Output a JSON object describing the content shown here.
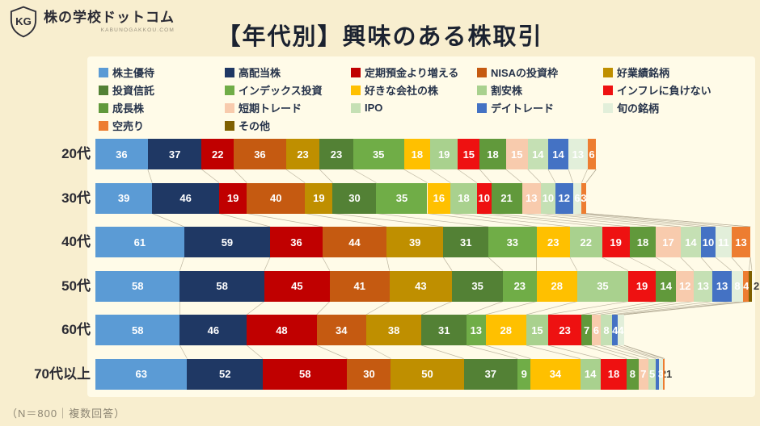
{
  "header": {
    "logo_initials": "KG",
    "logo_text": "株の学校ドットコム",
    "logo_subtext": "KABUNOGAKKOU.COM",
    "title": "【年代別】興味のある株取引"
  },
  "footer": {
    "note": "（N＝800｜複数回答）"
  },
  "chart_data": {
    "type": "bar",
    "orientation": "horizontal",
    "stacked": true,
    "title": "【年代別】興味のある株取引",
    "note": "（N＝800｜複数回答）",
    "legend_position": "top",
    "value_axis_visible": false,
    "categories": [
      "20代",
      "30代",
      "40代",
      "50代",
      "60代",
      "70代以上"
    ],
    "series": [
      {
        "name": "株主優待",
        "color": "#5b9bd5",
        "values": [
          36,
          39,
          61,
          58,
          58,
          63
        ]
      },
      {
        "name": "高配当株",
        "color": "#1f3864",
        "values": [
          37,
          46,
          59,
          58,
          46,
          52
        ]
      },
      {
        "name": "定期預金より増える",
        "color": "#c00000",
        "values": [
          22,
          19,
          36,
          45,
          48,
          58
        ]
      },
      {
        "name": "NISAの投資枠",
        "color": "#c55a11",
        "values": [
          36,
          40,
          44,
          41,
          34,
          30
        ]
      },
      {
        "name": "好業績銘柄",
        "color": "#bf8f00",
        "values": [
          23,
          19,
          39,
          43,
          38,
          50
        ]
      },
      {
        "name": "投資信託",
        "color": "#538135",
        "values": [
          23,
          30,
          31,
          35,
          31,
          37
        ]
      },
      {
        "name": "インデックス投資",
        "color": "#70ad47",
        "values": [
          35,
          35,
          33,
          23,
          13,
          9
        ]
      },
      {
        "name": "好きな会社の株",
        "color": "#ffc000",
        "values": [
          18,
          16,
          23,
          28,
          28,
          34
        ]
      },
      {
        "name": "割安株",
        "color": "#a9d18e",
        "values": [
          19,
          18,
          22,
          35,
          15,
          14
        ]
      },
      {
        "name": "インフレに負けない",
        "color": "#ee1111",
        "values": [
          15,
          10,
          19,
          19,
          23,
          18
        ]
      },
      {
        "name": "成長株",
        "color": "#61993b",
        "values": [
          18,
          21,
          18,
          14,
          7,
          8
        ]
      },
      {
        "name": "短期トレード",
        "color": "#f8cbad",
        "values": [
          15,
          13,
          17,
          12,
          6,
          7
        ]
      },
      {
        "name": "IPO",
        "color": "#c5e0b4",
        "values": [
          14,
          10,
          14,
          13,
          8,
          5
        ]
      },
      {
        "name": "デイトレード",
        "color": "#4472c4",
        "values": [
          14,
          12,
          10,
          13,
          4,
          2
        ]
      },
      {
        "name": "旬の銘柄",
        "color": "#e2efda",
        "values": [
          13,
          6,
          11,
          8,
          4,
          3
        ]
      },
      {
        "name": "空売り",
        "color": "#ed7d31",
        "values": [
          6,
          3,
          13,
          4,
          0,
          1
        ]
      },
      {
        "name": "その他",
        "color": "#7f6000",
        "values": [
          0,
          0,
          0,
          2,
          0,
          0
        ]
      }
    ]
  }
}
